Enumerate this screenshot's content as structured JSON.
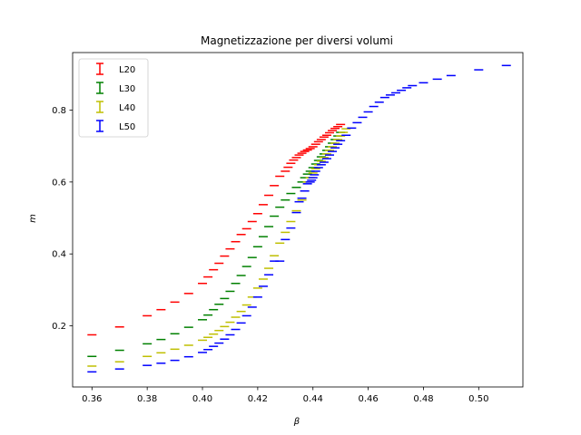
{
  "chart_data": {
    "type": "scatter",
    "title": "Magnetizzazione per diversi volumi",
    "xlabel": "β",
    "ylabel": "m",
    "xlim": [
      0.353,
      0.516
    ],
    "ylim": [
      0.03,
      0.96
    ],
    "xticks": [
      0.36,
      0.38,
      0.4,
      0.42,
      0.44,
      0.46,
      0.48,
      0.5
    ],
    "xtick_labels": [
      "0.36",
      "0.38",
      "0.40",
      "0.42",
      "0.44",
      "0.46",
      "0.48",
      "0.50"
    ],
    "yticks": [
      0.2,
      0.4,
      0.6,
      0.8
    ],
    "ytick_labels": [
      "0.2",
      "0.4",
      "0.6",
      "0.8"
    ],
    "grid": false,
    "legend_position": "top-left",
    "marker": "errorbar",
    "series": [
      {
        "name": "L20",
        "color": "#ff0000",
        "x": [
          0.36,
          0.37,
          0.38,
          0.385,
          0.39,
          0.395,
          0.4,
          0.402,
          0.404,
          0.406,
          0.408,
          0.41,
          0.412,
          0.414,
          0.416,
          0.418,
          0.42,
          0.422,
          0.424,
          0.426,
          0.428,
          0.43,
          0.431,
          0.432,
          0.433,
          0.434,
          0.435,
          0.436,
          0.437,
          0.438,
          0.439,
          0.44,
          0.441,
          0.442,
          0.443,
          0.444,
          0.445,
          0.446,
          0.447,
          0.448,
          0.449,
          0.45
        ],
        "y": [
          0.175,
          0.197,
          0.228,
          0.245,
          0.266,
          0.29,
          0.318,
          0.336,
          0.356,
          0.374,
          0.394,
          0.414,
          0.434,
          0.454,
          0.47,
          0.49,
          0.512,
          0.537,
          0.563,
          0.59,
          0.616,
          0.63,
          0.641,
          0.652,
          0.661,
          0.668,
          0.675,
          0.68,
          0.685,
          0.689,
          0.693,
          0.698,
          0.705,
          0.712,
          0.718,
          0.725,
          0.73,
          0.737,
          0.743,
          0.749,
          0.754,
          0.76
        ]
      },
      {
        "name": "L30",
        "color": "#008000",
        "x": [
          0.36,
          0.37,
          0.38,
          0.385,
          0.39,
          0.395,
          0.4,
          0.402,
          0.404,
          0.406,
          0.408,
          0.41,
          0.412,
          0.414,
          0.416,
          0.418,
          0.42,
          0.422,
          0.424,
          0.426,
          0.428,
          0.43,
          0.432,
          0.434,
          0.436,
          0.437,
          0.438,
          0.439,
          0.44,
          0.441,
          0.442,
          0.443,
          0.444,
          0.445,
          0.446,
          0.447,
          0.448,
          0.449,
          0.45
        ],
        "y": [
          0.115,
          0.132,
          0.15,
          0.162,
          0.178,
          0.196,
          0.217,
          0.23,
          0.245,
          0.26,
          0.276,
          0.296,
          0.318,
          0.34,
          0.365,
          0.39,
          0.42,
          0.448,
          0.476,
          0.505,
          0.53,
          0.55,
          0.568,
          0.585,
          0.6,
          0.612,
          0.622,
          0.63,
          0.64,
          0.65,
          0.66,
          0.67,
          0.678,
          0.688,
          0.698,
          0.708,
          0.718,
          0.728,
          0.738
        ]
      },
      {
        "name": "L40",
        "color": "#bfbf00",
        "x": [
          0.36,
          0.37,
          0.38,
          0.385,
          0.39,
          0.395,
          0.4,
          0.402,
          0.404,
          0.406,
          0.408,
          0.41,
          0.412,
          0.414,
          0.416,
          0.418,
          0.42,
          0.422,
          0.424,
          0.426,
          0.428,
          0.43,
          0.432,
          0.434,
          0.436,
          0.437,
          0.438,
          0.439,
          0.44,
          0.441,
          0.442,
          0.443,
          0.444,
          0.445,
          0.446,
          0.447,
          0.448,
          0.449,
          0.45,
          0.451,
          0.452
        ],
        "y": [
          0.088,
          0.1,
          0.115,
          0.125,
          0.135,
          0.146,
          0.16,
          0.168,
          0.177,
          0.187,
          0.198,
          0.21,
          0.224,
          0.24,
          0.258,
          0.28,
          0.305,
          0.33,
          0.36,
          0.395,
          0.43,
          0.46,
          0.49,
          0.52,
          0.55,
          0.575,
          0.6,
          0.612,
          0.625,
          0.637,
          0.648,
          0.658,
          0.668,
          0.678,
          0.688,
          0.698,
          0.708,
          0.718,
          0.728,
          0.738,
          0.748
        ]
      },
      {
        "name": "L50",
        "color": "#0000ff",
        "x": [
          0.36,
          0.37,
          0.38,
          0.385,
          0.39,
          0.395,
          0.4,
          0.402,
          0.404,
          0.406,
          0.408,
          0.41,
          0.412,
          0.414,
          0.416,
          0.418,
          0.42,
          0.422,
          0.424,
          0.426,
          0.428,
          0.43,
          0.432,
          0.434,
          0.435,
          0.436,
          0.437,
          0.438,
          0.439,
          0.4395,
          0.44,
          0.4405,
          0.441,
          0.442,
          0.443,
          0.444,
          0.445,
          0.446,
          0.447,
          0.448,
          0.449,
          0.45,
          0.452,
          0.454,
          0.456,
          0.458,
          0.46,
          0.462,
          0.464,
          0.466,
          0.468,
          0.47,
          0.472,
          0.474,
          0.476,
          0.48,
          0.485,
          0.49,
          0.5,
          0.51
        ],
        "y": [
          0.072,
          0.08,
          0.09,
          0.096,
          0.104,
          0.114,
          0.126,
          0.134,
          0.143,
          0.152,
          0.163,
          0.175,
          0.19,
          0.208,
          0.228,
          0.252,
          0.28,
          0.31,
          0.342,
          0.38,
          0.38,
          0.44,
          0.472,
          0.515,
          0.545,
          0.555,
          0.575,
          0.595,
          0.6,
          0.605,
          0.612,
          0.62,
          0.63,
          0.64,
          0.648,
          0.655,
          0.665,
          0.675,
          0.685,
          0.695,
          0.705,
          0.715,
          0.73,
          0.75,
          0.765,
          0.78,
          0.795,
          0.81,
          0.822,
          0.835,
          0.842,
          0.848,
          0.855,
          0.862,
          0.868,
          0.876,
          0.886,
          0.896,
          0.912,
          0.924
        ]
      }
    ]
  }
}
